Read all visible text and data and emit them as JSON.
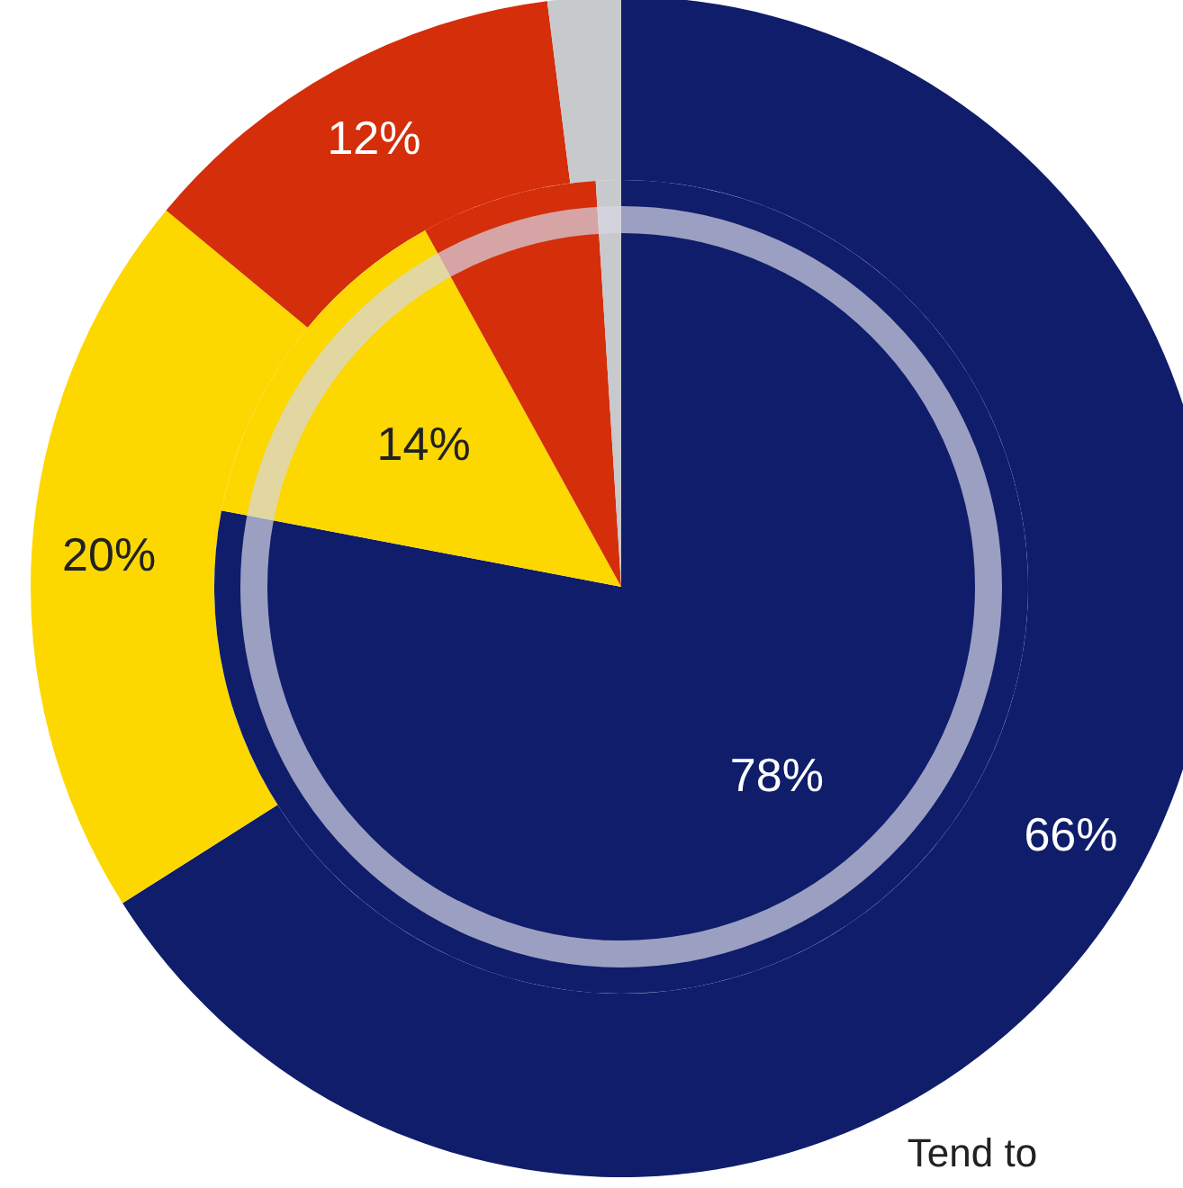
{
  "chart_data": [
    {
      "type": "donut",
      "categories": [
        null,
        null,
        null,
        null
      ],
      "values": [
        66,
        20,
        12,
        2
      ],
      "colors": [
        "#0f1d6b",
        "#fcd800",
        "#d42e0a",
        "#c8c9cc"
      ],
      "value_labels": [
        "66%",
        "20%",
        "12%",
        null
      ],
      "annotations": [
        "Tend to"
      ]
    },
    {
      "type": "pie",
      "categories": [
        null,
        null,
        null,
        null
      ],
      "values": [
        78,
        14,
        7,
        1
      ],
      "colors": [
        "#0f1d6b",
        "#fcd800",
        "#d42e0a",
        "#c8c9cc"
      ],
      "value_labels": [
        "78%",
        "14%",
        null,
        null
      ]
    }
  ]
}
